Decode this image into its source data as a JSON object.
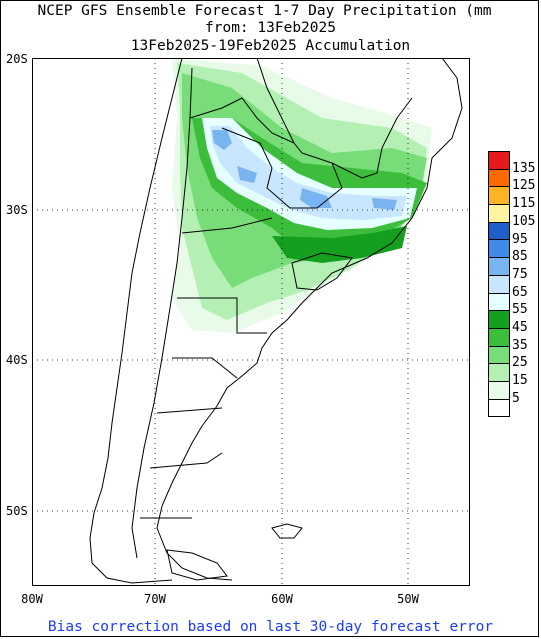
{
  "title": {
    "line1": "NCEP GFS Ensemble Forecast 1-7 Day Precipitation (mm",
    "line2": "from: 13Feb2025",
    "line3": "13Feb2025-19Feb2025 Accumulation"
  },
  "axes": {
    "lat_labels": [
      "20S",
      "30S",
      "40S",
      "50S"
    ],
    "lon_labels": [
      "80W",
      "70W",
      "60W",
      "50W"
    ]
  },
  "colorbar": {
    "labels": [
      "135",
      "125",
      "115",
      "105",
      "95",
      "85",
      "75",
      "65",
      "55",
      "45",
      "35",
      "25",
      "15",
      "5"
    ],
    "colors": [
      "#e8191b",
      "#ff6a00",
      "#ffb428",
      "#fff5a0",
      "#1e60c8",
      "#3e8ce6",
      "#78b4f0",
      "#c8e6ff",
      "#e6ffff",
      "#14a01e",
      "#3cbe3c",
      "#78dc78",
      "#b4f0b4",
      "#e8fae8",
      "#ffffff"
    ]
  },
  "footer": "Bias correction based on last 30-day forecast error"
}
